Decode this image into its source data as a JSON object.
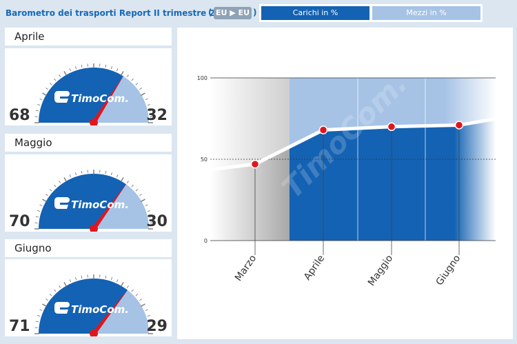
{
  "header": {
    "title": "Barometro dei trasporti Report II trimestre 2017",
    "route_badge": "EU ▶ EU",
    "paren_open": "(",
    "paren_close": ")",
    "tabs": [
      {
        "label": "Carichi in %",
        "active": true
      },
      {
        "label": "Mezzi in %",
        "active": false
      }
    ]
  },
  "gauges": [
    {
      "month": "Aprile",
      "loads": 68,
      "trucks": 32,
      "logo_text": "TimoCom."
    },
    {
      "month": "Maggio",
      "loads": 70,
      "trucks": 30,
      "logo_text": "TimoCom."
    },
    {
      "month": "Giugno",
      "loads": 71,
      "trucks": 29,
      "logo_text": "TimoCom."
    }
  ],
  "colors": {
    "dark_blue": "#1462b3",
    "light_blue": "#a6c3e6",
    "needle": "#e0161c",
    "title_blue": "#1769b8"
  },
  "chart_data": {
    "type": "line",
    "categories": [
      "Marzo",
      "Aprile",
      "Maggio",
      "Giugno"
    ],
    "values": [
      47,
      68,
      70,
      71
    ],
    "yticks": [
      0,
      50,
      100
    ],
    "ylim": [
      0,
      100
    ],
    "watermark": "TimoCom."
  }
}
